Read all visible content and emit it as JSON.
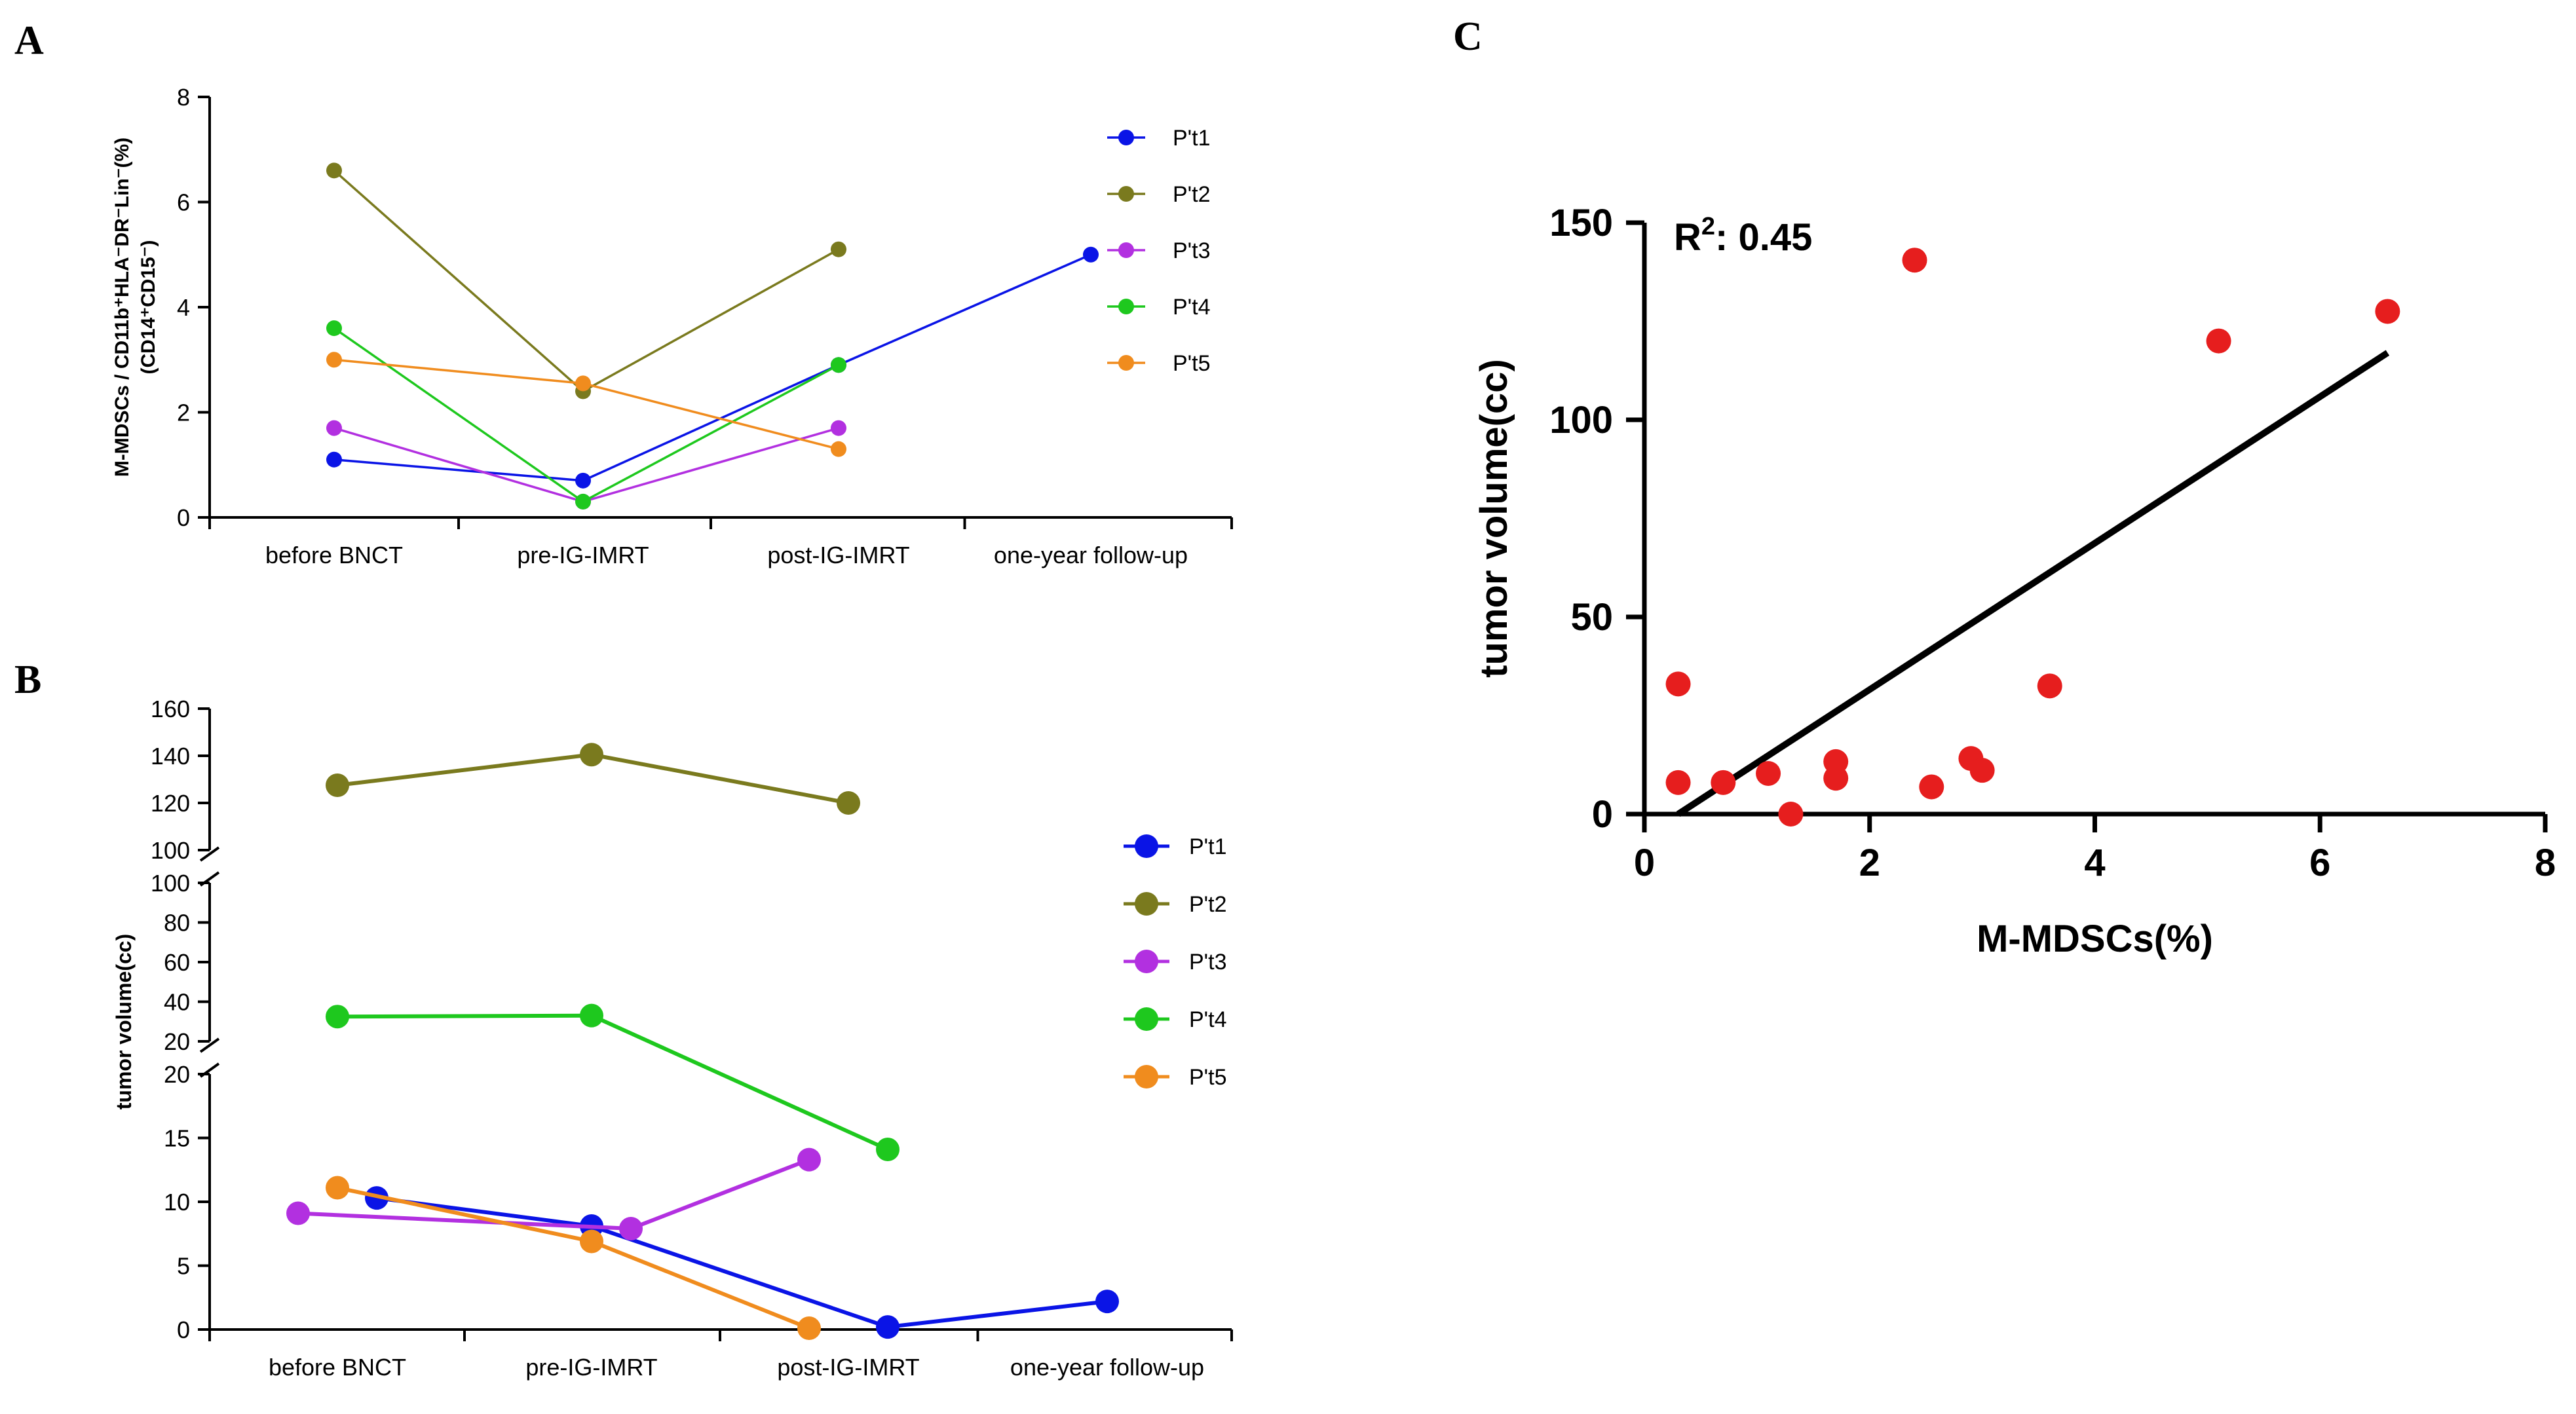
{
  "panels": {
    "a_letter": "A",
    "b_letter": "B",
    "c_letter": "C"
  },
  "colors": {
    "P't1": "#0a14e6",
    "P't2": "#7a7a1e",
    "P't3": "#b230e0",
    "P't4": "#1ec81e",
    "P't5": "#f08c1e",
    "scatter": "#e61e1e",
    "fit": "#000000"
  },
  "chart_data": [
    {
      "id": "A",
      "type": "line",
      "ylabel_line1": "M-MDSCs / CD11b⁺HLA⁻DR⁻Lin⁻(%)",
      "ylabel_line2": "(CD14⁺CD15⁻)",
      "xlabel": "",
      "categories": [
        "before BNCT",
        "pre-IG-IMRT",
        "post-IG-IMRT",
        "one-year follow-up"
      ],
      "ylim": [
        0,
        8
      ],
      "yticks": [
        0,
        2,
        4,
        6,
        8
      ],
      "legend_position": "right",
      "series": [
        {
          "name": "P't1",
          "values": [
            1.1,
            0.7,
            2.9,
            5.0
          ]
        },
        {
          "name": "P't2",
          "values": [
            6.6,
            2.4,
            5.1,
            null
          ]
        },
        {
          "name": "P't3",
          "values": [
            1.7,
            0.3,
            1.7,
            null
          ]
        },
        {
          "name": "P't4",
          "values": [
            3.6,
            0.3,
            2.9,
            null
          ]
        },
        {
          "name": "P't5",
          "values": [
            3.0,
            2.55,
            1.3,
            null
          ]
        }
      ]
    },
    {
      "id": "B",
      "type": "line",
      "ylabel": "tumor volume(cc)",
      "xlabel": "",
      "categories": [
        "before BNCT",
        "pre-IG-IMRT",
        "post-IG-IMRT",
        "one-year follow-up"
      ],
      "y_axis_segments": [
        {
          "range": [
            0,
            20
          ],
          "ticks": [
            0,
            5,
            10,
            15,
            20
          ]
        },
        {
          "range": [
            20,
            100
          ],
          "ticks": [
            20,
            40,
            60,
            80,
            100
          ]
        },
        {
          "range": [
            100,
            160
          ],
          "ticks": [
            100,
            120,
            140,
            160
          ]
        }
      ],
      "legend_position": "right",
      "series": [
        {
          "name": "P't1",
          "values": [
            10.3,
            8.1,
            0.2,
            2.2
          ]
        },
        {
          "name": "P't2",
          "values": [
            127.5,
            140.5,
            120.0,
            null
          ]
        },
        {
          "name": "P't3",
          "values": [
            9.1,
            7.9,
            13.3,
            null
          ]
        },
        {
          "name": "P't4",
          "values": [
            32.5,
            33.0,
            14.1,
            null
          ]
        },
        {
          "name": "P't5",
          "values": [
            11.1,
            6.9,
            0.1,
            null
          ]
        }
      ]
    },
    {
      "id": "C",
      "type": "scatter",
      "annotation": "R²: 0.45",
      "xlabel": "M-MDSCs(%)",
      "ylabel": "tumor volume(cc)",
      "xlim": [
        0,
        8
      ],
      "ylim": [
        0,
        150
      ],
      "xticks": [
        0,
        2,
        4,
        6,
        8
      ],
      "yticks": [
        0,
        50,
        100,
        150
      ],
      "points": [
        {
          "x": 0.3,
          "y": 33
        },
        {
          "x": 0.3,
          "y": 8
        },
        {
          "x": 0.7,
          "y": 8
        },
        {
          "x": 1.1,
          "y": 10.3
        },
        {
          "x": 1.3,
          "y": 0
        },
        {
          "x": 1.7,
          "y": 13.3
        },
        {
          "x": 1.7,
          "y": 9.1
        },
        {
          "x": 2.4,
          "y": 140.5
        },
        {
          "x": 2.55,
          "y": 6.9
        },
        {
          "x": 2.9,
          "y": 14.1
        },
        {
          "x": 3.0,
          "y": 11.1
        },
        {
          "x": 3.6,
          "y": 32.5
        },
        {
          "x": 5.1,
          "y": 120
        },
        {
          "x": 6.6,
          "y": 127.5
        }
      ],
      "fit_line": {
        "x": [
          0.3,
          6.6
        ],
        "y": [
          0,
          117
        ]
      }
    }
  ]
}
